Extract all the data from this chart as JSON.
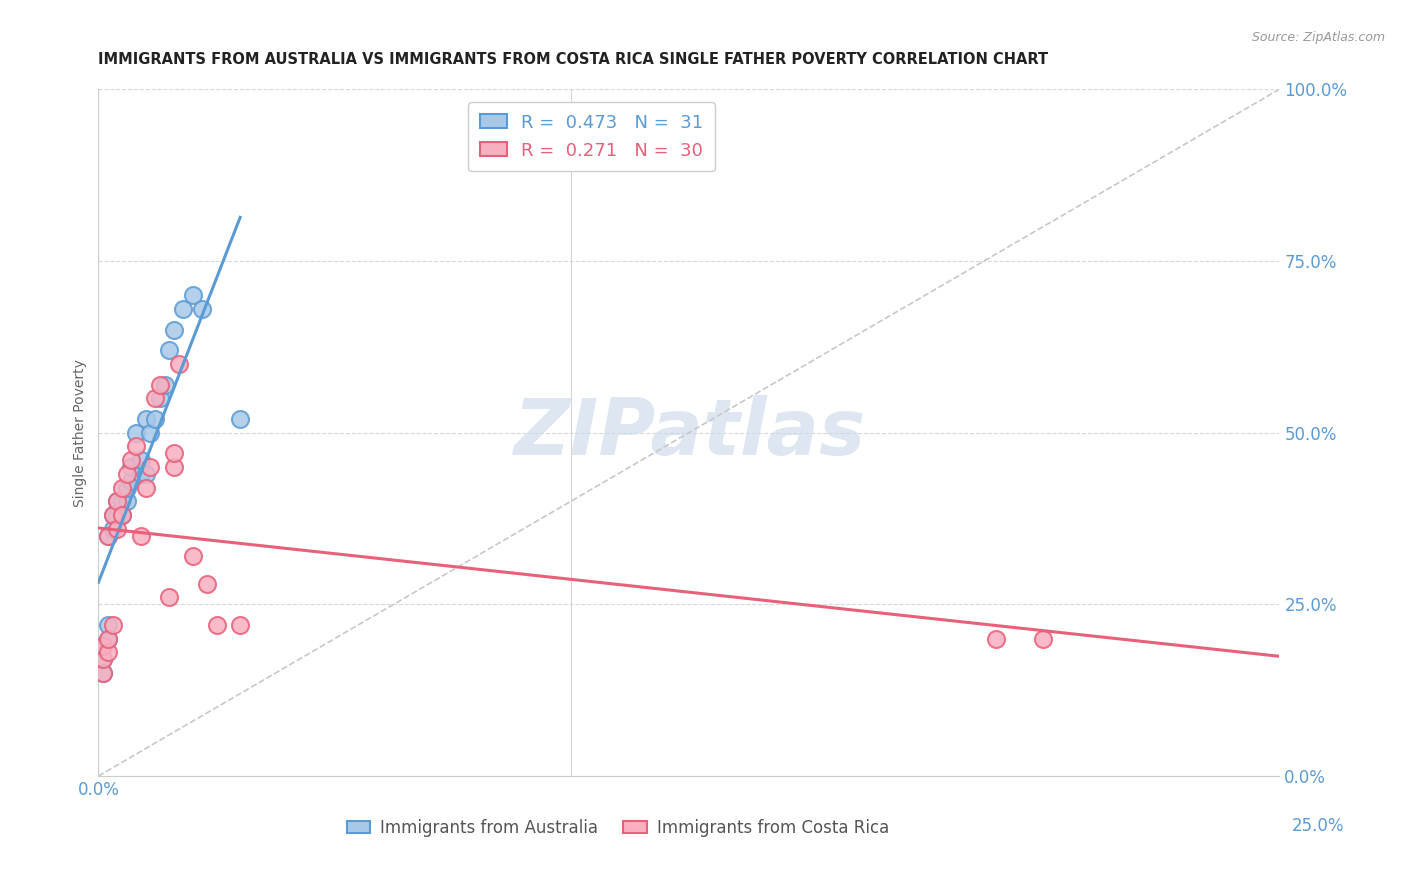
{
  "title": "IMMIGRANTS FROM AUSTRALIA VS IMMIGRANTS FROM COSTA RICA SINGLE FATHER POVERTY CORRELATION CHART",
  "source": "Source: ZipAtlas.com",
  "ylabel": "Single Father Poverty",
  "xlim": [
    0.0,
    0.25
  ],
  "ylim": [
    0.0,
    1.0
  ],
  "ytick_vals": [
    0.0,
    0.25,
    0.5,
    0.75,
    1.0
  ],
  "xtick_vals": [
    0.0,
    0.05,
    0.1,
    0.15,
    0.2,
    0.25
  ],
  "australia_face_color": "#a8c8e8",
  "australia_edge_color": "#5b9bd5",
  "costa_rica_face_color": "#f8b0c0",
  "costa_rica_edge_color": "#e8607a",
  "axis_label_color": "#5b9bd5",
  "title_color": "#222222",
  "grid_color": "#d8d8d8",
  "diag_color": "#c8c8c8",
  "watermark_color": "#c8d8e8",
  "legend_R_aus": "0.473",
  "legend_N_aus": "31",
  "legend_R_cr": "0.271",
  "legend_N_cr": "30",
  "legend_aus_color": "#5b9bd5",
  "legend_cr_color": "#e8607a",
  "australia_scatter_x": [
    0.001,
    0.001,
    0.001,
    0.002,
    0.002,
    0.002,
    0.003,
    0.003,
    0.004,
    0.004,
    0.005,
    0.005,
    0.006,
    0.006,
    0.007,
    0.007,
    0.008,
    0.009,
    0.009,
    0.01,
    0.01,
    0.011,
    0.012,
    0.013,
    0.014,
    0.015,
    0.016,
    0.018,
    0.02,
    0.022,
    0.03
  ],
  "australia_scatter_y": [
    0.15,
    0.17,
    0.19,
    0.2,
    0.22,
    0.35,
    0.36,
    0.38,
    0.38,
    0.4,
    0.38,
    0.4,
    0.4,
    0.42,
    0.43,
    0.45,
    0.5,
    0.44,
    0.46,
    0.44,
    0.52,
    0.5,
    0.52,
    0.55,
    0.57,
    0.62,
    0.65,
    0.68,
    0.7,
    0.68,
    0.52
  ],
  "costa_rica_scatter_x": [
    0.001,
    0.001,
    0.001,
    0.002,
    0.002,
    0.002,
    0.003,
    0.003,
    0.004,
    0.004,
    0.005,
    0.005,
    0.006,
    0.007,
    0.008,
    0.009,
    0.01,
    0.011,
    0.012,
    0.013,
    0.015,
    0.016,
    0.016,
    0.017,
    0.02,
    0.023,
    0.025,
    0.03,
    0.19,
    0.2
  ],
  "costa_rica_scatter_y": [
    0.15,
    0.17,
    0.19,
    0.18,
    0.2,
    0.35,
    0.22,
    0.38,
    0.36,
    0.4,
    0.38,
    0.42,
    0.44,
    0.46,
    0.48,
    0.35,
    0.42,
    0.45,
    0.55,
    0.57,
    0.26,
    0.45,
    0.47,
    0.6,
    0.32,
    0.28,
    0.22,
    0.22,
    0.2,
    0.2
  ],
  "marker_size": 150,
  "marker_linewidth": 1.5,
  "trend_linewidth": 2.2
}
